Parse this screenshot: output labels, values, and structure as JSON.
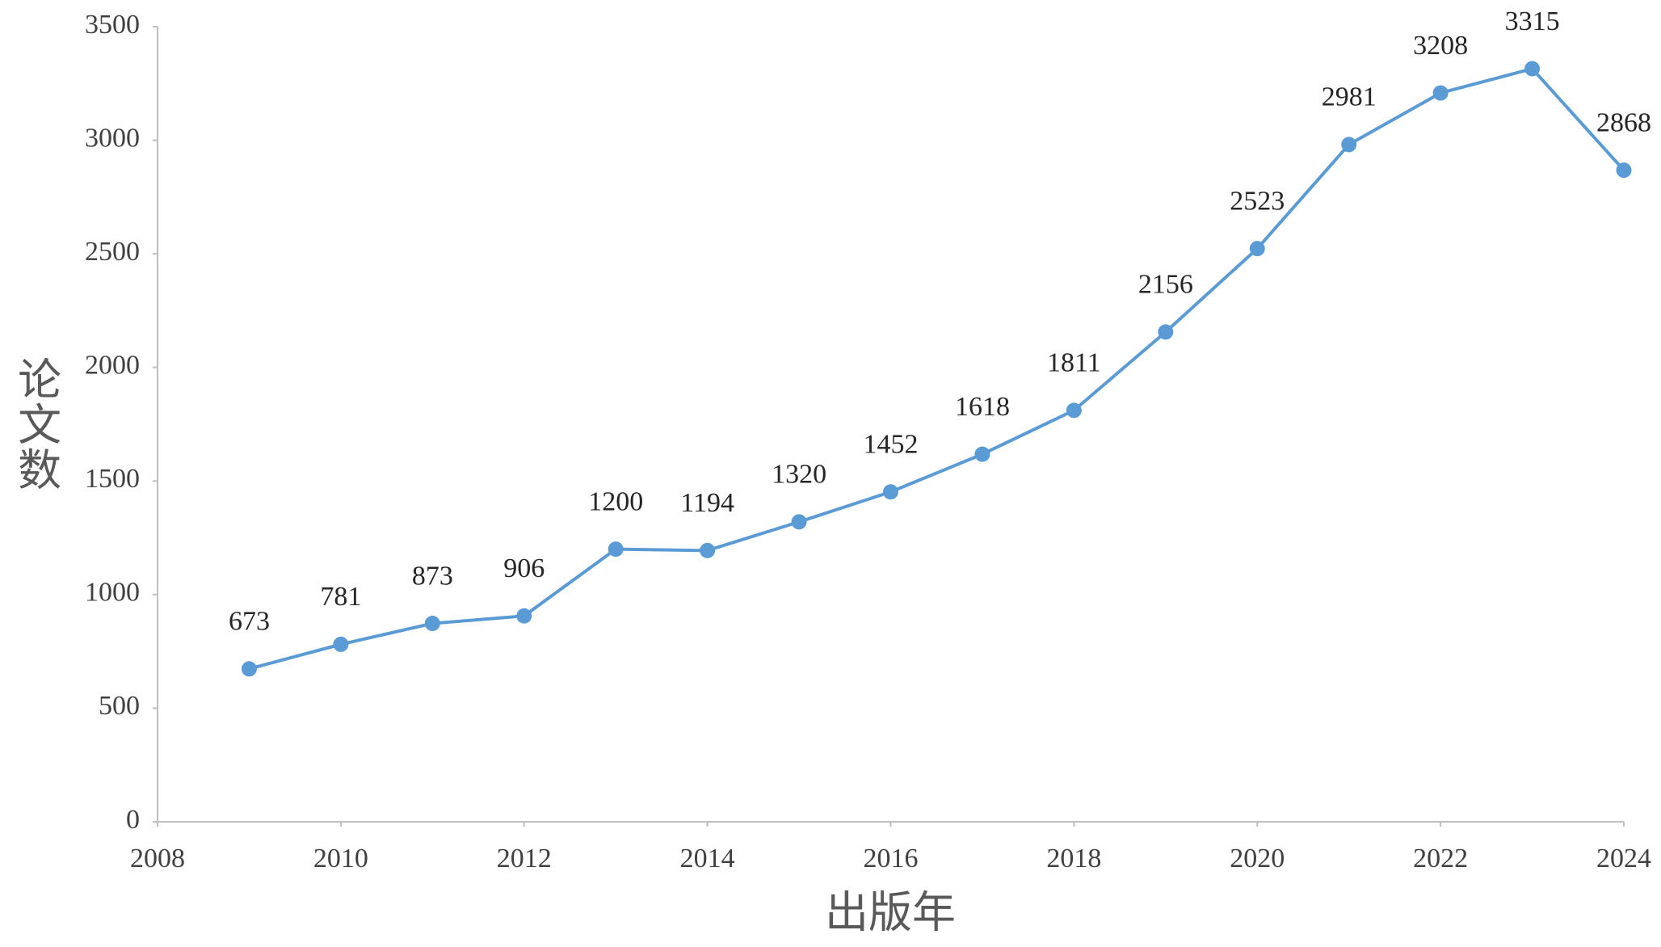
{
  "chart_data": {
    "type": "line",
    "x_label": "出版年",
    "y_label": "论文数",
    "x": [
      2009,
      2010,
      2011,
      2012,
      2013,
      2014,
      2015,
      2016,
      2017,
      2018,
      2019,
      2020,
      2021,
      2022,
      2023,
      2024
    ],
    "series": [
      {
        "name": "论文数",
        "color": "#5b9bd5",
        "values": [
          673,
          781,
          873,
          906,
          1200,
          1194,
          1320,
          1452,
          1618,
          1811,
          2156,
          2523,
          2981,
          3208,
          3315,
          2868
        ]
      }
    ],
    "xlim": [
      2008,
      2024
    ],
    "xticks": [
      2008,
      2010,
      2012,
      2014,
      2016,
      2018,
      2020,
      2022,
      2024
    ],
    "ylim": [
      0,
      3500
    ],
    "yticks": [
      0,
      500,
      1000,
      1500,
      2000,
      2500,
      3000,
      3500
    ],
    "grid": false,
    "data_labels": true
  }
}
